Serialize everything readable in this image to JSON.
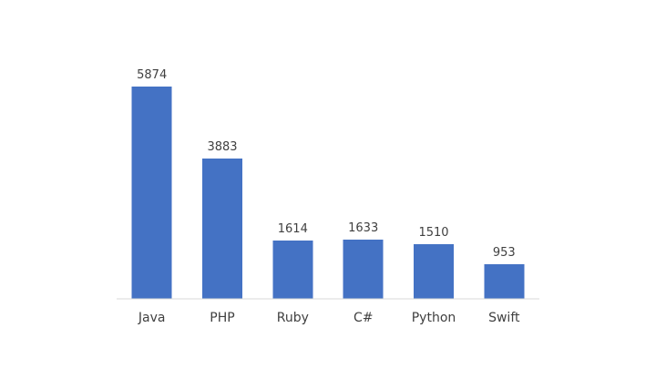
{
  "chart_data": {
    "type": "bar",
    "categories": [
      "Java",
      "PHP",
      "Ruby",
      "C#",
      "Python",
      "Swift"
    ],
    "values": [
      5874,
      3883,
      1614,
      1633,
      1510,
      953
    ],
    "data_labels": [
      "5874",
      "3883",
      "1614",
      "1633",
      "1510",
      "953"
    ],
    "title": "",
    "xlabel": "",
    "ylabel": "",
    "ylim": [
      0,
      5874
    ],
    "grid": false,
    "legend": "none",
    "bar_color": "#4472C4",
    "axis_color": "#D9D9D9",
    "text_color": "#404040"
  }
}
